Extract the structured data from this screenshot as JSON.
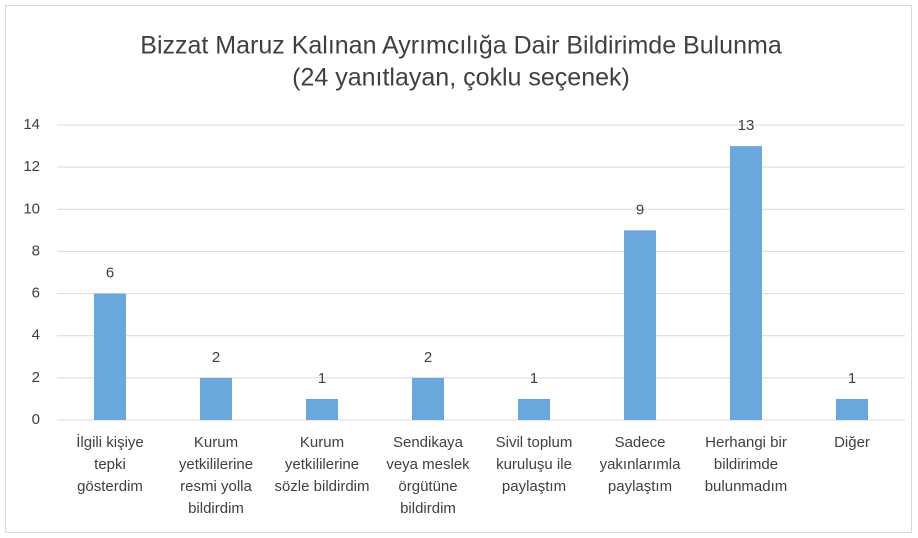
{
  "chart_data": {
    "type": "bar",
    "title": "Bizzat Maruz Kalınan Ayrımcılığa Dair Bildirimde Bulunma",
    "subtitle": "(24 yanıtlayan, çoklu seçenek)",
    "categories": [
      "İlgili kişiye tepki gösterdim",
      "Kurum yetkililerine resmi yolla bildirdim",
      "Kurum yetkililerine sözle bildirdim",
      "Sendikaya veya meslek örgütüne bildirdim",
      "Sivil toplum kuruluşu ile paylaştım",
      "Sadece yakınlarımla paylaştım",
      "Herhangi bir bildirimde bulunmadım",
      "Diğer"
    ],
    "values": [
      6,
      2,
      1,
      2,
      1,
      9,
      13,
      1
    ],
    "color": "#6aa7dc",
    "ylim": [
      0,
      14
    ],
    "yticks": [
      0,
      2,
      4,
      6,
      8,
      10,
      12,
      14
    ],
    "grid": true
  }
}
